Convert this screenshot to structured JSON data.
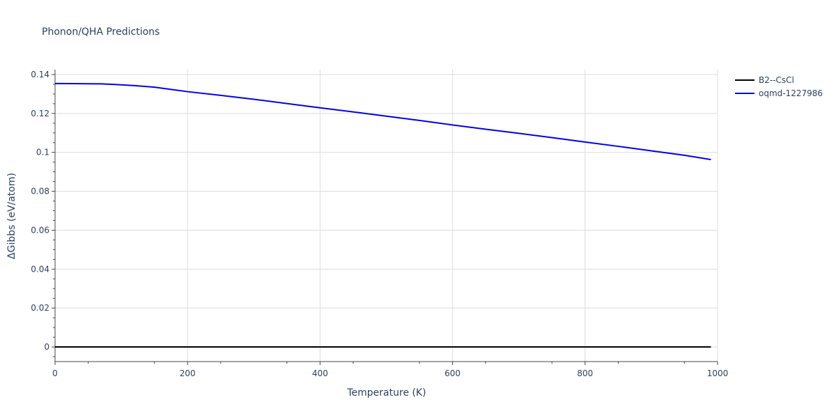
{
  "chart_data": {
    "type": "line",
    "title": "Phonon/QHA Predictions",
    "xlabel": "Temperature (K)",
    "ylabel": "ΔGibbs (eV/atom)",
    "xlim": [
      0,
      1000
    ],
    "ylim": [
      -0.0075,
      0.1425
    ],
    "grid": true,
    "legend_position": "top-right",
    "x_ticks": [
      {
        "value": 0,
        "label": "0"
      },
      {
        "value": 200,
        "label": "200"
      },
      {
        "value": 400,
        "label": "400"
      },
      {
        "value": 600,
        "label": "600"
      },
      {
        "value": 800,
        "label": "800"
      },
      {
        "value": 1000,
        "label": "1000"
      }
    ],
    "y_ticks": [
      {
        "value": 0,
        "label": "0"
      },
      {
        "value": 0.02,
        "label": "0.02"
      },
      {
        "value": 0.04,
        "label": "0.04"
      },
      {
        "value": 0.06,
        "label": "0.06"
      },
      {
        "value": 0.08,
        "label": "0.08"
      },
      {
        "value": 0.1,
        "label": "0.1"
      },
      {
        "value": 0.12,
        "label": "0.12"
      },
      {
        "value": 0.14,
        "label": "0.14"
      }
    ],
    "series": [
      {
        "name": "B2--CsCl",
        "color": "#000000",
        "x": [
          0,
          100,
          200,
          300,
          400,
          500,
          600,
          700,
          800,
          900,
          990
        ],
        "y": [
          0,
          0,
          0,
          0,
          0,
          0,
          0,
          0,
          0,
          0,
          0
        ]
      },
      {
        "name": "oqmd-1227986",
        "color": "#0000ee",
        "x": [
          0,
          40,
          70,
          90,
          120,
          150,
          200,
          250,
          300,
          350,
          400,
          450,
          500,
          550,
          600,
          650,
          700,
          750,
          800,
          850,
          900,
          950,
          990
        ],
        "y": [
          0.1354,
          0.1353,
          0.1352,
          0.1349,
          0.1343,
          0.1335,
          0.1312,
          0.1293,
          0.1273,
          0.1251,
          0.1229,
          0.1208,
          0.1186,
          0.1164,
          0.1141,
          0.1119,
          0.1098,
          0.1076,
          0.1053,
          0.1031,
          0.1008,
          0.0985,
          0.0963
        ]
      }
    ]
  }
}
